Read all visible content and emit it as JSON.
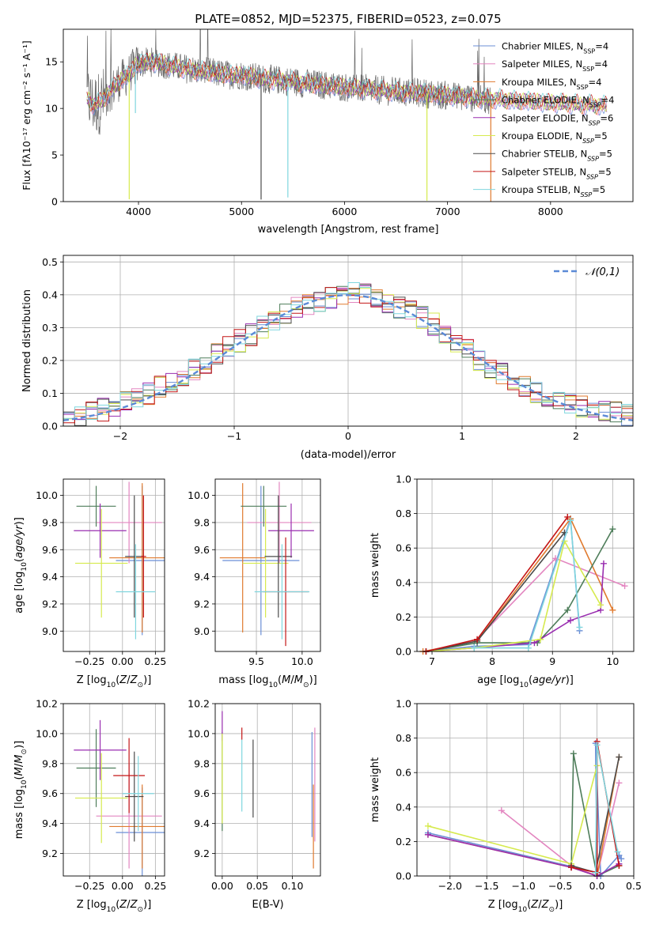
{
  "figure": {
    "title": "PLATE=0852, MJD=52375, FIBERID=0523, z=0.075"
  },
  "series": [
    {
      "name": "Chabrier MILES",
      "nssp": "4",
      "color": "#6b8fd6"
    },
    {
      "name": "Salpeter MILES",
      "nssp": "4",
      "color": "#e386c0"
    },
    {
      "name": "Kroupa MILES",
      "nssp": "4",
      "color": "#e07a2e"
    },
    {
      "name": "Chabrier ELODIE",
      "nssp": "4",
      "color": "#4e7d5a"
    },
    {
      "name": "Salpeter ELODIE",
      "nssp": "6",
      "color": "#9a2eb0"
    },
    {
      "name": "Kroupa ELODIE",
      "nssp": "5",
      "color": "#d6ea4e"
    },
    {
      "name": "Chabrier STELIB",
      "nssp": "5",
      "color": "#4b4b4b"
    },
    {
      "name": "Salpeter STELIB",
      "nssp": "5",
      "color": "#c41616"
    },
    {
      "name": "Kroupa STELIB",
      "nssp": "5",
      "color": "#7fd6de"
    }
  ],
  "chart_data": [
    {
      "id": "spectrum",
      "type": "line",
      "xlabel": "wavelength [Angstrom, rest frame]",
      "ylabel": "Flux [fλ10⁻¹⁷ erg cm⁻² s⁻¹ A⁻¹]",
      "xlim": [
        3270,
        8800
      ],
      "ylim": [
        0,
        18.5
      ],
      "xticks": [
        4000,
        5000,
        6000,
        7000,
        8000
      ],
      "yticks": [
        0,
        5,
        10,
        15
      ],
      "legend": "top-right",
      "grid": false,
      "continuum": {
        "x": [
          3500,
          3560,
          3620,
          3700,
          3800,
          3900,
          3950,
          4000,
          4100,
          4200,
          4300,
          4400,
          4500,
          4600,
          4700,
          4800,
          4900,
          5000,
          5100,
          5200,
          5300,
          5400,
          5500,
          5600,
          5700,
          5800,
          5900,
          6000,
          6100,
          6200,
          6300,
          6400,
          6500,
          6600,
          6700,
          6800,
          6900,
          7000,
          7100,
          7200,
          7300,
          7400,
          7500,
          7600,
          7700,
          7800,
          7900,
          8000,
          8100,
          8200,
          8300,
          8400,
          8500
        ],
        "y": [
          11.2,
          10.4,
          10.6,
          11.5,
          12.8,
          13.6,
          14.3,
          14.8,
          15.0,
          14.9,
          14.6,
          14.4,
          14.2,
          14.0,
          13.9,
          13.7,
          13.6,
          13.6,
          13.4,
          13.2,
          13.1,
          13.0,
          12.9,
          12.7,
          12.6,
          12.5,
          12.4,
          12.3,
          12.2,
          12.1,
          12.0,
          11.9,
          11.8,
          11.7,
          11.7,
          11.6,
          11.5,
          11.4,
          11.3,
          11.2,
          11.1,
          11.0,
          11.0,
          10.9,
          10.8,
          10.8,
          10.7,
          10.6,
          10.6,
          10.5,
          10.4,
          10.4,
          10.3
        ]
      },
      "data_range": [
        3500,
        7420
      ],
      "model_range": [
        3500,
        8550
      ],
      "absorption_features": [
        {
          "x": 3910,
          "depth": 13.5,
          "series": 5
        },
        {
          "x": 3970,
          "depth": 5.0,
          "series": 8
        },
        {
          "x": 5190,
          "depth": 13.0,
          "series": 6
        },
        {
          "x": 5450,
          "depth": 12.5,
          "series": 8
        },
        {
          "x": 6800,
          "depth": 11.5,
          "series": 5
        },
        {
          "x": 7420,
          "depth": 11.0,
          "series": 2
        }
      ]
    },
    {
      "id": "residual_hist",
      "type": "histogram",
      "xlabel": "(data-model)/error",
      "ylabel": "Normed distribution",
      "xlim": [
        -2.5,
        2.5
      ],
      "ylim": [
        0,
        0.52
      ],
      "xticks": [
        -2,
        -1,
        0,
        1,
        2
      ],
      "yticks": [
        0.0,
        0.1,
        0.2,
        0.3,
        0.4,
        0.5
      ],
      "grid": true,
      "reference_curve": {
        "name": "𝒩(0,1)",
        "mean": 0,
        "sigma": 1
      },
      "bins": [
        -2.5,
        -2.4,
        -2.3,
        -2.2,
        -2.1,
        -2.0,
        -1.9,
        -1.8,
        -1.7,
        -1.6,
        -1.5,
        -1.4,
        -1.3,
        -1.2,
        -1.1,
        -1.0,
        -0.9,
        -0.8,
        -0.7,
        -0.6,
        -0.5,
        -0.4,
        -0.3,
        -0.2,
        -0.1,
        0.0,
        0.1,
        0.2,
        0.3,
        0.4,
        0.5,
        0.6,
        0.7,
        0.8,
        0.9,
        1.0,
        1.1,
        1.2,
        1.3,
        1.4,
        1.5,
        1.6,
        1.7,
        1.8,
        1.9,
        2.0,
        2.1,
        2.2,
        2.3,
        2.4,
        2.5
      ],
      "base_density": [
        0.02,
        0.03,
        0.04,
        0.05,
        0.06,
        0.07,
        0.08,
        0.1,
        0.12,
        0.13,
        0.15,
        0.17,
        0.19,
        0.22,
        0.24,
        0.26,
        0.28,
        0.3,
        0.32,
        0.34,
        0.36,
        0.37,
        0.38,
        0.39,
        0.4,
        0.41,
        0.4,
        0.39,
        0.38,
        0.36,
        0.35,
        0.33,
        0.31,
        0.28,
        0.25,
        0.23,
        0.2,
        0.18,
        0.16,
        0.14,
        0.12,
        0.1,
        0.09,
        0.08,
        0.07,
        0.06,
        0.05,
        0.045,
        0.04,
        0.035
      ]
    },
    {
      "id": "age_vs_Z",
      "type": "errorbar",
      "xlabel": "Z [log10(Z/Z⊙)]",
      "ylabel": "age  [log10(age/yr)]",
      "xlim": [
        -0.45,
        0.32
      ],
      "ylim": [
        8.85,
        10.12
      ],
      "xticks": [
        -0.25,
        0.0,
        0.25
      ],
      "xticklabels": [
        "−0.25",
        "0.00",
        "0.25"
      ],
      "yticks": [
        9.0,
        9.2,
        9.4,
        9.6,
        9.8,
        10.0
      ],
      "grid": true,
      "points": [
        {
          "series": 0,
          "x": 0.15,
          "xerr": 0.2,
          "y": 9.52,
          "yerr": 0.55
        },
        {
          "series": 1,
          "x": 0.05,
          "xerr": 0.25,
          "y": 9.8,
          "yerr": 0.3
        },
        {
          "series": 2,
          "x": 0.15,
          "xerr": 0.25,
          "y": 9.54,
          "yerr": 0.55
        },
        {
          "series": 3,
          "x": -0.2,
          "xerr": 0.15,
          "y": 9.92,
          "yerr": 0.15
        },
        {
          "series": 4,
          "x": -0.17,
          "xerr": 0.2,
          "y": 9.74,
          "yerr": 0.2
        },
        {
          "series": 5,
          "x": -0.16,
          "xerr": 0.2,
          "y": 9.5,
          "yerr": 0.4
        },
        {
          "series": 6,
          "x": 0.09,
          "xerr": 0.07,
          "y": 9.55,
          "yerr": 0.45
        },
        {
          "series": 7,
          "x": 0.16,
          "xerr": 0.02,
          "y": 9.55,
          "yerr": 0.45
        },
        {
          "series": 8,
          "x": 0.1,
          "xerr": 0.15,
          "y": 9.29,
          "yerr": 0.35
        }
      ]
    },
    {
      "id": "age_vs_mass",
      "type": "errorbar",
      "xlabel": "mass [log10(M/M⊙)]",
      "ylabel": "",
      "xlim": [
        9.05,
        10.2
      ],
      "ylim": [
        8.85,
        10.12
      ],
      "xticks": [
        9.5,
        10.0
      ],
      "yticks": [
        9.0,
        9.2,
        9.4,
        9.6,
        9.8,
        10.0
      ],
      "grid": true,
      "points": [
        {
          "series": 0,
          "x": 9.55,
          "xerr": 0.42,
          "y": 9.52,
          "yerr": 0.55
        },
        {
          "series": 1,
          "x": 9.75,
          "xerr": 0.35,
          "y": 9.8,
          "yerr": 0.3
        },
        {
          "series": 2,
          "x": 9.35,
          "xerr": 0.25,
          "y": 9.54,
          "yerr": 0.55
        },
        {
          "series": 3,
          "x": 9.58,
          "xerr": 0.25,
          "y": 9.92,
          "yerr": 0.15
        },
        {
          "series": 4,
          "x": 9.88,
          "xerr": 0.25,
          "y": 9.74,
          "yerr": 0.2
        },
        {
          "series": 5,
          "x": 9.6,
          "xerr": 0.25,
          "y": 9.5,
          "yerr": 0.4
        },
        {
          "series": 6,
          "x": 9.74,
          "xerr": 0.15,
          "y": 9.55,
          "yerr": 0.45
        },
        {
          "series": 7,
          "x": 9.82,
          "xerr": 0.25,
          "y": 9.29,
          "yerr": 0.4
        },
        {
          "series": 8,
          "x": 9.78,
          "xerr": 0.3,
          "y": 9.29,
          "yerr": 0.35
        }
      ]
    },
    {
      "id": "weight_vs_age",
      "type": "line",
      "xlabel": "age  [log10(age/yr)]",
      "ylabel": "mass weight",
      "xlim": [
        6.75,
        10.35
      ],
      "ylim": [
        0,
        1.0
      ],
      "xticks": [
        7,
        8,
        9,
        10
      ],
      "yticks": [
        0.0,
        0.2,
        0.4,
        0.6,
        0.8,
        1.0
      ],
      "grid": true,
      "lines": [
        {
          "series": 0,
          "x": [
            6.9,
            7.7,
            8.6,
            9.3,
            9.45
          ],
          "y": [
            0.0,
            0.03,
            0.04,
            0.77,
            0.12
          ]
        },
        {
          "series": 1,
          "x": [
            6.9,
            7.75,
            9.05,
            10.2
          ],
          "y": [
            0.0,
            0.07,
            0.54,
            0.38
          ]
        },
        {
          "series": 2,
          "x": [
            6.85,
            7.75,
            9.3,
            10.0
          ],
          "y": [
            0.0,
            0.06,
            0.77,
            0.24
          ]
        },
        {
          "series": 3,
          "x": [
            6.9,
            7.75,
            8.75,
            9.25,
            10.0
          ],
          "y": [
            0.0,
            0.05,
            0.05,
            0.24,
            0.71
          ]
        },
        {
          "series": 4,
          "x": [
            6.9,
            7.7,
            8.7,
            9.3,
            9.8,
            9.85
          ],
          "y": [
            0.0,
            0.02,
            0.05,
            0.18,
            0.24,
            0.51
          ]
        },
        {
          "series": 5,
          "x": [
            6.9,
            7.7,
            8.8,
            9.2,
            9.8
          ],
          "y": [
            0.0,
            0.02,
            0.07,
            0.64,
            0.27
          ]
        },
        {
          "series": 6,
          "x": [
            6.9,
            7.75,
            9.2
          ],
          "y": [
            0.0,
            0.06,
            0.69
          ]
        },
        {
          "series": 7,
          "x": [
            6.9,
            7.75,
            9.25
          ],
          "y": [
            0.0,
            0.07,
            0.78
          ]
        },
        {
          "series": 8,
          "x": [
            7.7,
            8.6,
            9.3,
            9.45
          ],
          "y": [
            0.02,
            0.02,
            0.76,
            0.14
          ]
        }
      ]
    },
    {
      "id": "mass_vs_Z",
      "type": "errorbar",
      "xlabel": "Z [log10(Z/Z⊙)]",
      "ylabel": "mass [log10(M/M⊙)]",
      "xlim": [
        -0.45,
        0.32
      ],
      "ylim": [
        9.05,
        10.2
      ],
      "xticks": [
        -0.25,
        0.0,
        0.25
      ],
      "xticklabels": [
        "−0.25",
        "0.00",
        "0.25"
      ],
      "yticks": [
        9.2,
        9.4,
        9.6,
        9.8,
        10.0,
        10.2
      ],
      "grid": true,
      "points": [
        {
          "series": 0,
          "x": 0.15,
          "xerr": 0.2,
          "y": 9.34,
          "yerr": 0.3
        },
        {
          "series": 1,
          "x": 0.05,
          "xerr": 0.25,
          "y": 9.45,
          "yerr": 0.35
        },
        {
          "series": 2,
          "x": 0.15,
          "xerr": 0.25,
          "y": 9.38,
          "yerr": 0.28
        },
        {
          "series": 3,
          "x": -0.2,
          "xerr": 0.15,
          "y": 9.77,
          "yerr": 0.26
        },
        {
          "series": 4,
          "x": -0.17,
          "xerr": 0.2,
          "y": 9.89,
          "yerr": 0.2
        },
        {
          "series": 5,
          "x": -0.16,
          "xerr": 0.2,
          "y": 9.57,
          "yerr": 0.3
        },
        {
          "series": 6,
          "x": 0.09,
          "xerr": 0.07,
          "y": 9.58,
          "yerr": 0.3
        },
        {
          "series": 7,
          "x": 0.05,
          "xerr": 0.12,
          "y": 9.72,
          "yerr": 0.25
        },
        {
          "series": 8,
          "x": 0.12,
          "xerr": 0.12,
          "y": 9.6,
          "yerr": 0.25
        }
      ]
    },
    {
      "id": "mass_vs_ebv",
      "type": "errorbar",
      "xlabel": "E(B-V)",
      "ylabel": "",
      "xlim": [
        -0.01,
        0.14
      ],
      "ylim": [
        9.05,
        10.2
      ],
      "xticks": [
        0.0,
        0.05,
        0.1
      ],
      "xticklabels": [
        "0.00",
        "0.05",
        "0.10"
      ],
      "yticks": [
        9.2,
        9.4,
        9.6,
        9.8,
        10.0,
        10.2
      ],
      "grid": true,
      "points": [
        {
          "series": 0,
          "x": 0.128,
          "xerr": 0,
          "y": 9.66,
          "yerr": 0.35
        },
        {
          "series": 1,
          "x": 0.132,
          "xerr": 0,
          "y": 9.66,
          "yerr": 0.38
        },
        {
          "series": 2,
          "x": 0.13,
          "xerr": 0,
          "y": 9.38,
          "yerr": 0.28
        },
        {
          "series": 3,
          "x": 0.0,
          "xerr": 0,
          "y": 9.68,
          "yerr": 0.33
        },
        {
          "series": 4,
          "x": 0.0,
          "xerr": 0,
          "y": 10.05,
          "yerr": 0.1
        },
        {
          "series": 5,
          "x": 0.0,
          "xerr": 0,
          "y": 9.7,
          "yerr": 0.3
        },
        {
          "series": 6,
          "x": 0.044,
          "xerr": 0,
          "y": 9.7,
          "yerr": 0.26
        },
        {
          "series": 7,
          "x": 0.028,
          "xerr": 0,
          "y": 10.0,
          "yerr": 0.04
        },
        {
          "series": 8,
          "x": 0.028,
          "xerr": 0,
          "y": 9.72,
          "yerr": 0.24
        }
      ]
    },
    {
      "id": "weight_vs_Z",
      "type": "line",
      "xlabel": "Z [log10(Z/Z⊙)]",
      "ylabel": "mass weight",
      "xlim": [
        -2.45,
        0.5
      ],
      "ylim": [
        0,
        1.0
      ],
      "xticks": [
        -2.0,
        -1.5,
        -1.0,
        -0.5,
        0.0,
        0.5
      ],
      "xticklabels": [
        "−2.0",
        "−1.5",
        "−1.0",
        "−0.5",
        "0.0",
        "0.5"
      ],
      "yticks": [
        0.0,
        0.2,
        0.4,
        0.6,
        0.8,
        1.0
      ],
      "grid": true,
      "lines": [
        {
          "series": 0,
          "x": [
            -2.3,
            0.0,
            -0.02,
            0.05,
            0.3,
            0.33
          ],
          "y": [
            0.25,
            0.02,
            0.77,
            0.0,
            0.12,
            0.1
          ]
        },
        {
          "series": 1,
          "x": [
            -1.3,
            -0.35,
            0.0,
            0.3
          ],
          "y": [
            0.38,
            0.06,
            0.0,
            0.54
          ]
        },
        {
          "series": 2,
          "x": [
            -2.3,
            -0.35,
            0.0,
            0.3
          ],
          "y": [
            0.24,
            0.05,
            0.0,
            0.69
          ]
        },
        {
          "series": 3,
          "x": [
            -0.35,
            -0.32,
            0.0,
            0.3
          ],
          "y": [
            0.05,
            0.71,
            0.0,
            0.06
          ]
        },
        {
          "series": 4,
          "x": [
            -2.3,
            -0.35,
            0.0,
            0.3
          ],
          "y": [
            0.24,
            0.05,
            0.0,
            0.07
          ]
        },
        {
          "series": 5,
          "x": [
            -2.3,
            -0.35,
            0.0
          ],
          "y": [
            0.29,
            0.07,
            0.64
          ]
        },
        {
          "series": 6,
          "x": [
            -0.35,
            -0.02,
            0.3
          ],
          "y": [
            0.06,
            0.02,
            0.69
          ]
        },
        {
          "series": 7,
          "x": [
            -0.35,
            0.0,
            0.0,
            0.3
          ],
          "y": [
            0.05,
            0.02,
            0.78,
            0.06
          ]
        },
        {
          "series": 8,
          "x": [
            -0.02,
            0.0,
            0.28
          ],
          "y": [
            0.02,
            0.76,
            0.14
          ]
        }
      ]
    }
  ]
}
